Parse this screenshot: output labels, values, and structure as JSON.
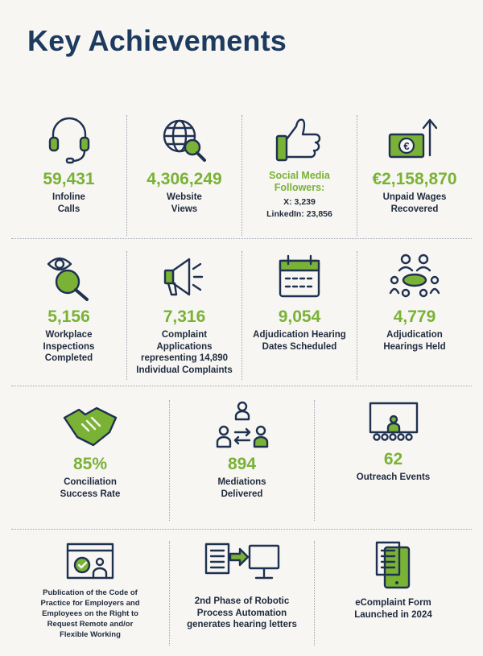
{
  "title": "Key Achievements",
  "row1": [
    {
      "value": "59,431",
      "label": [
        "Infoline",
        "Calls"
      ],
      "icon": "headset-icon"
    },
    {
      "value": "4,306,249",
      "label": [
        "Website",
        "Views"
      ],
      "icon": "globe-search-icon"
    },
    {
      "heading": [
        "Social Media",
        "Followers:"
      ],
      "lines": [
        "X: 3,239",
        "LinkedIn: 23,856"
      ],
      "icon": "thumbs-up-icon"
    },
    {
      "value": "€2,158,870",
      "label": [
        "Unpaid Wages",
        "Recovered"
      ],
      "icon": "euro-banknote-arrow-icon"
    }
  ],
  "row2": [
    {
      "value": "5,156",
      "label": [
        "Workplace",
        "Inspections",
        "Completed"
      ],
      "icon": "eye-magnifier-icon"
    },
    {
      "value": "7,316",
      "label": [
        "Complaint",
        "Applications",
        "representing 14,890",
        "Individual Complaints"
      ],
      "icon": "megaphone-icon"
    },
    {
      "value": "9,054",
      "label": [
        "Adjudication Hearing",
        "Dates Scheduled"
      ],
      "icon": "calendar-icon"
    },
    {
      "value": "4,779",
      "label": [
        "Adjudication",
        "Hearings Held"
      ],
      "icon": "meeting-table-icon"
    }
  ],
  "row3": [
    {
      "value": "85%",
      "label": [
        "Conciliation",
        "Success Rate"
      ],
      "icon": "handshake-icon"
    },
    {
      "value": "894",
      "label": [
        "Mediations",
        "Delivered"
      ],
      "icon": "mediation-people-icon"
    },
    {
      "value": "62",
      "label": [
        "Outreach Events"
      ],
      "icon": "presentation-audience-icon"
    }
  ],
  "row4": [
    {
      "label": [
        "Publication of the Code of",
        "Practice for Employers and",
        "Employees on the Right to",
        "Request Remote and/or",
        "Flexible Working"
      ],
      "icon": "remote-work-screen-icon"
    },
    {
      "label": [
        "2nd Phase of Robotic",
        "Process Automation",
        "generates hearing letters"
      ],
      "icon": "document-to-monitor-icon"
    },
    {
      "label": [
        "eComplaint Form",
        "Launched in 2024"
      ],
      "icon": "tablet-form-icon"
    }
  ],
  "colors": {
    "green": "#7ab236",
    "navy": "#1d3a5f",
    "background": "#f7f6f3"
  }
}
